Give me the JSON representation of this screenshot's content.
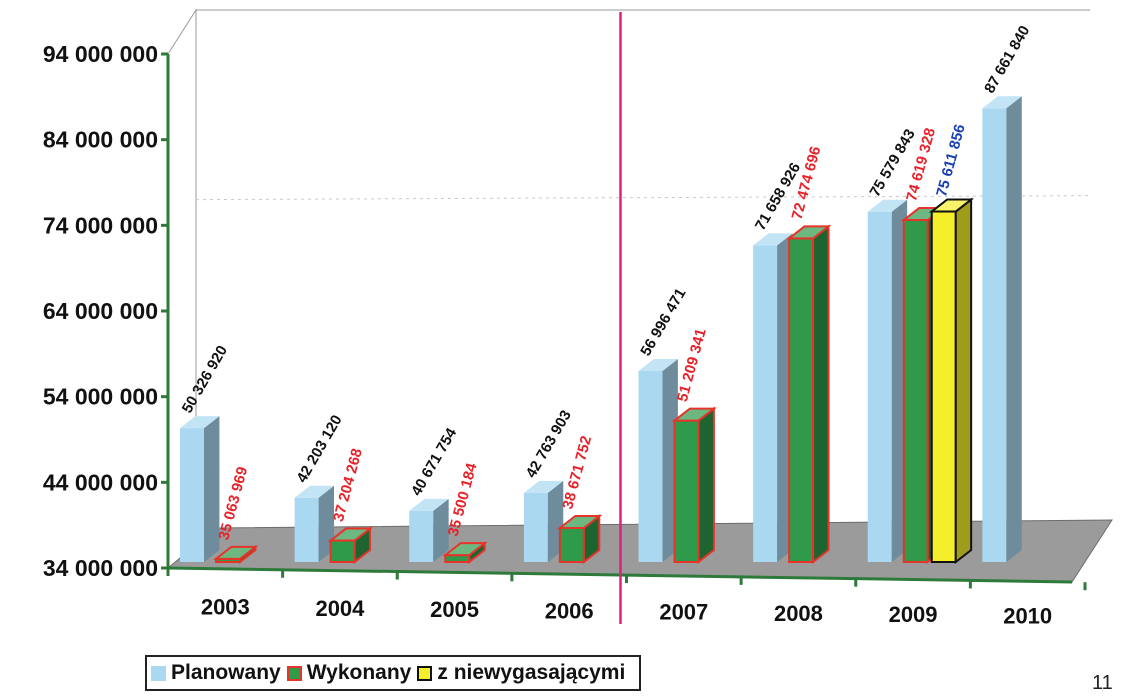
{
  "chart_data": {
    "type": "bar",
    "categories": [
      "2003",
      "2004",
      "2005",
      "2006",
      "2007",
      "2008",
      "2009",
      "2010"
    ],
    "ylim": [
      34000000,
      94000000
    ],
    "yticks": [
      34000000,
      44000000,
      54000000,
      64000000,
      74000000,
      84000000,
      94000000
    ],
    "ytick_labels": [
      "34 000 000",
      "44 000 000",
      "54 000 000",
      "64 000 000",
      "74 000 000",
      "84 000 000",
      "94 000 000"
    ],
    "series": [
      {
        "name": "Planowany",
        "color": "#a9d8f0",
        "values": [
          50326920,
          42203120,
          40671754,
          42763903,
          56996471,
          71658926,
          75579843,
          87661840
        ],
        "labels": [
          "50 326 920",
          "42 203 120",
          "40 671 754",
          "42 763 903",
          "56 996 471",
          "71 658 926",
          "75 579 843",
          "87 661 840"
        ],
        "label_color": "#111111"
      },
      {
        "name": "Wykonany",
        "color": "#2e9a4a",
        "edge_color": "#e8332a",
        "values": [
          35063969,
          37204268,
          35500184,
          38671752,
          51209341,
          72474696,
          74619328,
          null
        ],
        "labels": [
          "35 063 969",
          "37 204 268",
          "35 500 184",
          "38 671 752",
          "51 209 341",
          "72 474 696",
          "74 619 328",
          ""
        ],
        "label_color": "#e8222a"
      },
      {
        "name": "z niewygasającymi",
        "color": "#f5ee2a",
        "edge_color": "#111111",
        "values": [
          null,
          null,
          null,
          null,
          null,
          null,
          75611856,
          null
        ],
        "labels": [
          "",
          "",
          "",
          "",
          "",
          "",
          "75 611 856",
          ""
        ],
        "label_color": "#1a3fb5"
      }
    ],
    "divider_after_category": "2006",
    "divider_color": "#e0207a",
    "legend_position": "bottom-left",
    "grid": false
  },
  "page_number": "11"
}
